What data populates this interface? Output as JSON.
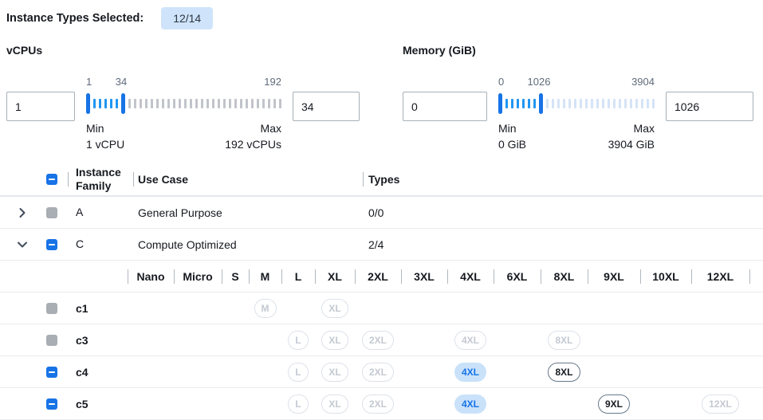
{
  "header": {
    "label": "Instance Types Selected:",
    "badge": "12/14"
  },
  "filters": [
    {
      "label": "vCPUs",
      "low_input": "1",
      "high_input": "34",
      "range": {
        "min": 1,
        "max": 192,
        "low": 1,
        "high": 34
      },
      "min_caption": "Min",
      "min_detail": "1 vCPU",
      "max_caption": "Max",
      "max_detail": "192 vCPUs"
    },
    {
      "label": "Memory (GiB)",
      "low_input": "0",
      "high_input": "1026",
      "range": {
        "min": 0,
        "max": 3904,
        "low": 0,
        "high": 1026
      },
      "min_caption": "Min",
      "min_detail": "0 GiB",
      "max_caption": "Max",
      "max_detail": "3904 GiB"
    }
  ],
  "table": {
    "header_checkbox": "indeterminate",
    "columns": {
      "family": "Instance Family",
      "use_case": "Use Case",
      "types": "Types"
    },
    "family_rows": [
      {
        "family": "A",
        "use_case": "General Purpose",
        "types": "0/0",
        "expanded": false,
        "checkbox": "disabled"
      },
      {
        "family": "C",
        "use_case": "Compute Optimized",
        "types": "2/4",
        "expanded": true,
        "checkbox": "indeterminate"
      }
    ],
    "sizes": [
      "Nano",
      "Micro",
      "S",
      "M",
      "L",
      "XL",
      "2XL",
      "3XL",
      "4XL",
      "6XL",
      "8XL",
      "9XL",
      "10XL",
      "12XL"
    ],
    "instance_rows": [
      {
        "name": "c1",
        "checkbox": "disabled",
        "pills": {
          "M": "disabled",
          "XL": "disabled"
        }
      },
      {
        "name": "c3",
        "checkbox": "disabled",
        "pills": {
          "L": "disabled",
          "XL": "disabled",
          "2XL": "disabled",
          "4XL": "disabled",
          "8XL": "disabled"
        }
      },
      {
        "name": "c4",
        "checkbox": "indeterminate",
        "pills": {
          "L": "disabled",
          "XL": "disabled",
          "2XL": "disabled",
          "4XL": "selected",
          "8XL": "available"
        }
      },
      {
        "name": "c5",
        "checkbox": "indeterminate",
        "pills": {
          "L": "disabled",
          "XL": "disabled",
          "2XL": "disabled",
          "4XL": "selected",
          "9XL": "available",
          "12XL": "disabled"
        }
      }
    ]
  },
  "colors": {
    "accent_blue": "#1773e6",
    "tick_filled_blue": "#2196f3",
    "badge_bg": "#cfe4fa",
    "selected_pill_bg": "#c9e2fa",
    "disabled_grey": "#a9aeb4",
    "divider_grey": "#b1b8c2",
    "row_border": "#e9ebed"
  }
}
